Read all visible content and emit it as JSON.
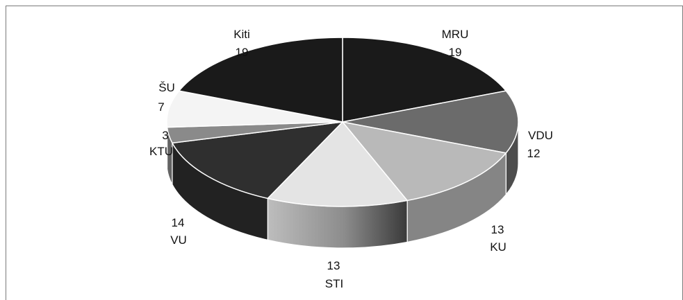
{
  "chart_data": {
    "type": "pie",
    "style": "3d",
    "title": "",
    "slices": [
      {
        "label": "MRU",
        "value": 19,
        "color": "#1a1a1a"
      },
      {
        "label": "VDU",
        "value": 12,
        "color": "#6b6b6b"
      },
      {
        "label": "KU",
        "value": 13,
        "color": "#b9b9b9"
      },
      {
        "label": "STI",
        "value": 13,
        "color": "#e4e4e4"
      },
      {
        "label": "VU",
        "value": 14,
        "color": "#2f2f2f"
      },
      {
        "label": "KTU",
        "value": 3,
        "color": "#8a8a8a"
      },
      {
        "label": "ŠU",
        "value": 7,
        "color": "#f4f4f4"
      },
      {
        "label": "Kiti",
        "value": 19,
        "color": "#1a1a1a"
      }
    ]
  }
}
